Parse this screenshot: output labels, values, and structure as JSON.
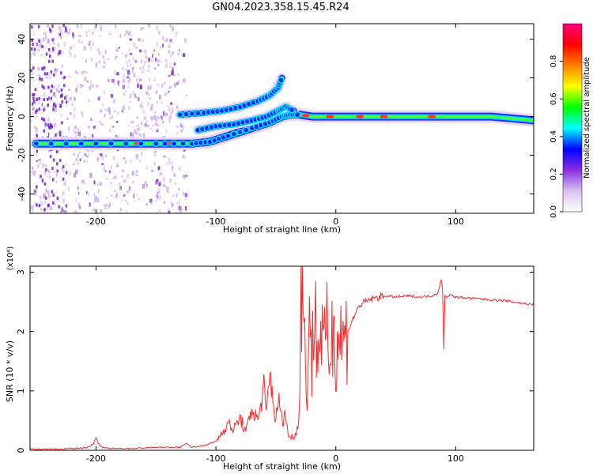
{
  "figure": {
    "title": "GN04.2023.358.15.45.R24"
  },
  "chart_data": [
    {
      "type": "heatmap",
      "name": "spectrogram",
      "title": "",
      "xlabel": "Height of straight line (km)",
      "ylabel": "Frequency (Hz)",
      "xlim": [
        -255,
        165
      ],
      "ylim": [
        -50,
        48
      ],
      "xticks": [
        -200,
        -100,
        0,
        100
      ],
      "yticks": [
        -40,
        -20,
        0,
        20,
        40
      ],
      "colorbar": {
        "label": "Normalized spectral amplitude",
        "range": [
          0.0,
          1.0
        ],
        "ticks": [
          "0.0",
          "0.2",
          "0.4",
          "0.6",
          "0.8"
        ],
        "tick_values": [
          0.0,
          0.2,
          0.4,
          0.6,
          0.8
        ],
        "colors": [
          "#ffffff",
          "#d9c2f0",
          "#8a2be2",
          "#0000ff",
          "#00ffff",
          "#00ff00",
          "#ffff00",
          "#ff8000",
          "#ff0000",
          "#ff0080"
        ]
      },
      "tracks": [
        {
          "name": "main",
          "x": [
            -250,
            -200,
            -150,
            -120,
            -105,
            -90,
            -70,
            -55,
            -45,
            -38,
            -30,
            -20,
            -10,
            0,
            20,
            50,
            80,
            100,
            130,
            165
          ],
          "y": [
            -14,
            -14,
            -14,
            -14,
            -13,
            -10,
            -6,
            -3,
            0,
            1,
            1,
            0,
            0,
            0,
            0,
            0,
            0,
            0,
            0,
            -2
          ]
        },
        {
          "name": "upper",
          "x": [
            -130,
            -110,
            -95,
            -80,
            -65,
            -55,
            -48,
            -45
          ],
          "y": [
            1,
            2,
            3,
            5,
            8,
            11,
            15,
            20
          ]
        },
        {
          "name": "middle",
          "x": [
            -115,
            -100,
            -85,
            -70,
            -58,
            -48,
            -42,
            -35
          ],
          "y": [
            -7,
            -5,
            -4,
            -2,
            0,
            3,
            5,
            3
          ]
        }
      ],
      "scatter_region_x": [
        -255,
        -125
      ]
    },
    {
      "type": "line",
      "name": "snr",
      "title": "",
      "xlabel": "Height of straight line (km)",
      "ylabel": "SNR (10 * v/v)",
      "y_multiplier": "(x10⁴)",
      "xlim": [
        -255,
        165
      ],
      "ylim": [
        0,
        3.1
      ],
      "xticks": [
        -200,
        -100,
        0,
        100
      ],
      "yticks": [
        0,
        1,
        2,
        3
      ],
      "color": "#e83030",
      "series": [
        {
          "x": [
            -255,
            -230,
            -210,
            -205,
            -202,
            -200,
            -198,
            -195,
            -190,
            -170,
            -150,
            -130,
            -125,
            -120,
            -110,
            -100,
            -95,
            -90,
            -85,
            -80,
            -75,
            -70,
            -65,
            -60,
            -58,
            -55,
            -52,
            -50,
            -48,
            -45,
            -42,
            -40,
            -38,
            -35,
            -33,
            -31,
            -30,
            -29,
            -28,
            -26,
            -24,
            -22,
            -20,
            -18,
            -15,
            -12,
            -10,
            -8,
            -5,
            -2,
            0,
            3,
            6,
            10,
            15,
            20,
            25,
            30,
            40,
            50,
            60,
            70,
            80,
            85,
            88,
            89,
            90,
            91,
            92,
            95,
            100,
            120,
            140,
            165
          ],
          "y": [
            0.02,
            0.02,
            0.04,
            0.06,
            0.12,
            0.22,
            0.12,
            0.05,
            0.03,
            0.03,
            0.05,
            0.05,
            0.12,
            0.05,
            0.08,
            0.15,
            0.3,
            0.45,
            0.35,
            0.55,
            0.3,
            0.7,
            0.5,
            1.05,
            0.6,
            1.3,
            0.8,
            0.45,
            0.9,
            0.5,
            0.6,
            0.3,
            0.2,
            0.25,
            0.3,
            0.45,
            1.4,
            3.08,
            2.9,
            1.7,
            1.05,
            2.45,
            1.3,
            2.55,
            1.6,
            2.2,
            1.5,
            2.05,
            1.6,
            2.15,
            1.75,
            1.95,
            1.85,
            2.0,
            2.25,
            2.45,
            2.5,
            2.55,
            2.6,
            2.58,
            2.6,
            2.58,
            2.6,
            2.65,
            2.88,
            2.7,
            1.72,
            2.6,
            2.58,
            2.62,
            2.58,
            2.55,
            2.52,
            2.45
          ]
        }
      ]
    }
  ]
}
